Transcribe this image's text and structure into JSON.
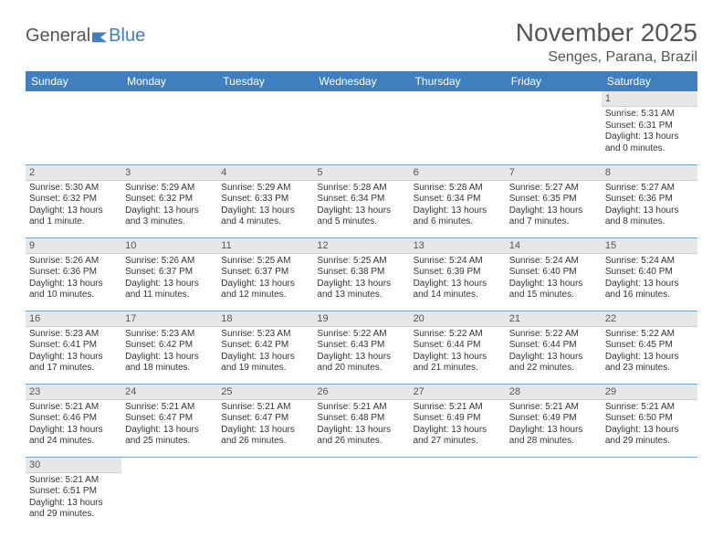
{
  "logo": {
    "word1": "General",
    "word2": "Blue"
  },
  "title": "November 2025",
  "location": "Senges, Parana, Brazil",
  "weekdays": [
    "Sunday",
    "Monday",
    "Tuesday",
    "Wednesday",
    "Thursday",
    "Friday",
    "Saturday"
  ],
  "colors": {
    "header_bg": "#3f7fbf",
    "header_text": "#ffffff",
    "daynum_bg": "#e7e7e7",
    "cell_border": "#7aa5c9",
    "title_text": "#555555",
    "body_text": "#333333"
  },
  "grid": [
    [
      null,
      null,
      null,
      null,
      null,
      null,
      {
        "n": "1",
        "sunrise": "Sunrise: 5:31 AM",
        "sunset": "Sunset: 6:31 PM",
        "daylight": "Daylight: 13 hours and 0 minutes."
      }
    ],
    [
      {
        "n": "2",
        "sunrise": "Sunrise: 5:30 AM",
        "sunset": "Sunset: 6:32 PM",
        "daylight": "Daylight: 13 hours and 1 minute."
      },
      {
        "n": "3",
        "sunrise": "Sunrise: 5:29 AM",
        "sunset": "Sunset: 6:32 PM",
        "daylight": "Daylight: 13 hours and 3 minutes."
      },
      {
        "n": "4",
        "sunrise": "Sunrise: 5:29 AM",
        "sunset": "Sunset: 6:33 PM",
        "daylight": "Daylight: 13 hours and 4 minutes."
      },
      {
        "n": "5",
        "sunrise": "Sunrise: 5:28 AM",
        "sunset": "Sunset: 6:34 PM",
        "daylight": "Daylight: 13 hours and 5 minutes."
      },
      {
        "n": "6",
        "sunrise": "Sunrise: 5:28 AM",
        "sunset": "Sunset: 6:34 PM",
        "daylight": "Daylight: 13 hours and 6 minutes."
      },
      {
        "n": "7",
        "sunrise": "Sunrise: 5:27 AM",
        "sunset": "Sunset: 6:35 PM",
        "daylight": "Daylight: 13 hours and 7 minutes."
      },
      {
        "n": "8",
        "sunrise": "Sunrise: 5:27 AM",
        "sunset": "Sunset: 6:36 PM",
        "daylight": "Daylight: 13 hours and 8 minutes."
      }
    ],
    [
      {
        "n": "9",
        "sunrise": "Sunrise: 5:26 AM",
        "sunset": "Sunset: 6:36 PM",
        "daylight": "Daylight: 13 hours and 10 minutes."
      },
      {
        "n": "10",
        "sunrise": "Sunrise: 5:26 AM",
        "sunset": "Sunset: 6:37 PM",
        "daylight": "Daylight: 13 hours and 11 minutes."
      },
      {
        "n": "11",
        "sunrise": "Sunrise: 5:25 AM",
        "sunset": "Sunset: 6:37 PM",
        "daylight": "Daylight: 13 hours and 12 minutes."
      },
      {
        "n": "12",
        "sunrise": "Sunrise: 5:25 AM",
        "sunset": "Sunset: 6:38 PM",
        "daylight": "Daylight: 13 hours and 13 minutes."
      },
      {
        "n": "13",
        "sunrise": "Sunrise: 5:24 AM",
        "sunset": "Sunset: 6:39 PM",
        "daylight": "Daylight: 13 hours and 14 minutes."
      },
      {
        "n": "14",
        "sunrise": "Sunrise: 5:24 AM",
        "sunset": "Sunset: 6:40 PM",
        "daylight": "Daylight: 13 hours and 15 minutes."
      },
      {
        "n": "15",
        "sunrise": "Sunrise: 5:24 AM",
        "sunset": "Sunset: 6:40 PM",
        "daylight": "Daylight: 13 hours and 16 minutes."
      }
    ],
    [
      {
        "n": "16",
        "sunrise": "Sunrise: 5:23 AM",
        "sunset": "Sunset: 6:41 PM",
        "daylight": "Daylight: 13 hours and 17 minutes."
      },
      {
        "n": "17",
        "sunrise": "Sunrise: 5:23 AM",
        "sunset": "Sunset: 6:42 PM",
        "daylight": "Daylight: 13 hours and 18 minutes."
      },
      {
        "n": "18",
        "sunrise": "Sunrise: 5:23 AM",
        "sunset": "Sunset: 6:42 PM",
        "daylight": "Daylight: 13 hours and 19 minutes."
      },
      {
        "n": "19",
        "sunrise": "Sunrise: 5:22 AM",
        "sunset": "Sunset: 6:43 PM",
        "daylight": "Daylight: 13 hours and 20 minutes."
      },
      {
        "n": "20",
        "sunrise": "Sunrise: 5:22 AM",
        "sunset": "Sunset: 6:44 PM",
        "daylight": "Daylight: 13 hours and 21 minutes."
      },
      {
        "n": "21",
        "sunrise": "Sunrise: 5:22 AM",
        "sunset": "Sunset: 6:44 PM",
        "daylight": "Daylight: 13 hours and 22 minutes."
      },
      {
        "n": "22",
        "sunrise": "Sunrise: 5:22 AM",
        "sunset": "Sunset: 6:45 PM",
        "daylight": "Daylight: 13 hours and 23 minutes."
      }
    ],
    [
      {
        "n": "23",
        "sunrise": "Sunrise: 5:21 AM",
        "sunset": "Sunset: 6:46 PM",
        "daylight": "Daylight: 13 hours and 24 minutes."
      },
      {
        "n": "24",
        "sunrise": "Sunrise: 5:21 AM",
        "sunset": "Sunset: 6:47 PM",
        "daylight": "Daylight: 13 hours and 25 minutes."
      },
      {
        "n": "25",
        "sunrise": "Sunrise: 5:21 AM",
        "sunset": "Sunset: 6:47 PM",
        "daylight": "Daylight: 13 hours and 26 minutes."
      },
      {
        "n": "26",
        "sunrise": "Sunrise: 5:21 AM",
        "sunset": "Sunset: 6:48 PM",
        "daylight": "Daylight: 13 hours and 26 minutes."
      },
      {
        "n": "27",
        "sunrise": "Sunrise: 5:21 AM",
        "sunset": "Sunset: 6:49 PM",
        "daylight": "Daylight: 13 hours and 27 minutes."
      },
      {
        "n": "28",
        "sunrise": "Sunrise: 5:21 AM",
        "sunset": "Sunset: 6:49 PM",
        "daylight": "Daylight: 13 hours and 28 minutes."
      },
      {
        "n": "29",
        "sunrise": "Sunrise: 5:21 AM",
        "sunset": "Sunset: 6:50 PM",
        "daylight": "Daylight: 13 hours and 29 minutes."
      }
    ],
    [
      {
        "n": "30",
        "sunrise": "Sunrise: 5:21 AM",
        "sunset": "Sunset: 6:51 PM",
        "daylight": "Daylight: 13 hours and 29 minutes."
      },
      null,
      null,
      null,
      null,
      null,
      null
    ]
  ]
}
